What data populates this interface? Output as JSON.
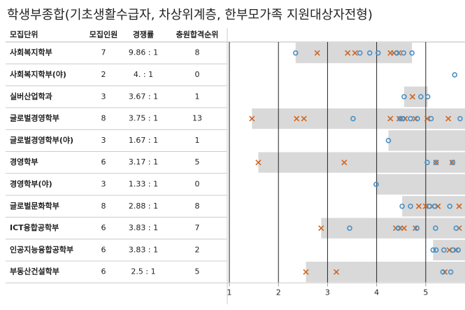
{
  "title": "학생부종합(기초생활수급자, 차상위계층, 한부모가족 지원대상자전형)",
  "table": {
    "columns": [
      "모집단위",
      "모집인원",
      "경쟁률",
      "충원합격순위"
    ],
    "rows": [
      [
        "사회복지학부",
        7,
        "9.86 : 1",
        8
      ],
      [
        "사회복지학부(야)",
        2,
        "4. : 1",
        0
      ],
      [
        "실버산업학과",
        3,
        "3.67 : 1",
        1
      ],
      [
        "글로벌경영학부",
        8,
        "3.75 : 1",
        13
      ],
      [
        "글로벌경영학부(야)",
        3,
        "1.67 : 1",
        1
      ],
      [
        "경영학부",
        6,
        "3.17 : 1",
        5
      ],
      [
        "경영학부(야)",
        3,
        "1.33 : 1",
        0
      ],
      [
        "글로벌문화학부",
        8,
        "2.88 : 1",
        8
      ],
      [
        "ICT융합공학부",
        6,
        "3.83 : 1",
        7
      ],
      [
        "인공지능융합공학부",
        6,
        "3.83 : 1",
        2
      ],
      [
        "부동산건설학부",
        6,
        "2.5 : 1",
        5
      ]
    ]
  },
  "chart_data": {
    "type": "strip",
    "xlim": [
      1,
      5.8
    ],
    "xticks": [
      1,
      2,
      3,
      4,
      5
    ],
    "grid": true,
    "range_color": "#d9d9d9",
    "circle_color": "#4a8fc4",
    "cross_color": "#d0651f",
    "rows": [
      {
        "range": [
          2.35,
          4.72
        ],
        "circles": [
          2.35,
          3.66,
          3.86,
          4.03,
          4.41,
          4.55,
          4.72
        ],
        "crosses": [
          2.79,
          3.41,
          3.56,
          4.28,
          4.35,
          4.45
        ]
      },
      {
        "range": [
          5.59,
          5.59
        ],
        "circles": [
          5.59
        ],
        "crosses": []
      },
      {
        "range": [
          4.56,
          5.04
        ],
        "circles": [
          4.56,
          4.9,
          5.04
        ],
        "crosses": [
          4.73
        ]
      },
      {
        "range": [
          1.46,
          5.8
        ],
        "circles": [
          3.52,
          4.48,
          4.54,
          4.69,
          4.83,
          5.11,
          5.7
        ],
        "crosses": [
          1.46,
          2.37,
          2.52,
          4.28,
          4.46,
          4.58,
          4.79,
          5.03,
          5.46
        ]
      },
      {
        "range": [
          4.24,
          5.8
        ],
        "circles": [
          4.24
        ],
        "crosses": []
      },
      {
        "range": [
          1.59,
          5.8
        ],
        "circles": [
          5.03,
          5.21,
          5.55
        ],
        "crosses": [
          1.59,
          3.34,
          5.21,
          5.54
        ]
      },
      {
        "range": [
          3.99,
          5.8
        ],
        "circles": [
          3.99
        ],
        "crosses": []
      },
      {
        "range": [
          4.52,
          5.8
        ],
        "circles": [
          4.52,
          4.69,
          5.08,
          5.18,
          5.49
        ],
        "crosses": [
          4.86,
          5.0,
          5.13,
          5.25,
          5.68
        ]
      },
      {
        "range": [
          2.87,
          5.8
        ],
        "circles": [
          3.45,
          4.44,
          4.82,
          5.2,
          5.62
        ],
        "crosses": [
          2.87,
          4.39,
          4.48,
          4.56,
          4.79,
          5.68
        ]
      },
      {
        "range": [
          5.15,
          5.8
        ],
        "circles": [
          5.15,
          5.21,
          5.37,
          5.55,
          5.66
        ],
        "crosses": [
          5.48,
          5.62
        ]
      },
      {
        "range": [
          2.56,
          5.8
        ],
        "circles": [
          5.35,
          5.51
        ],
        "crosses": [
          2.56,
          3.18,
          5.39
        ]
      }
    ]
  }
}
